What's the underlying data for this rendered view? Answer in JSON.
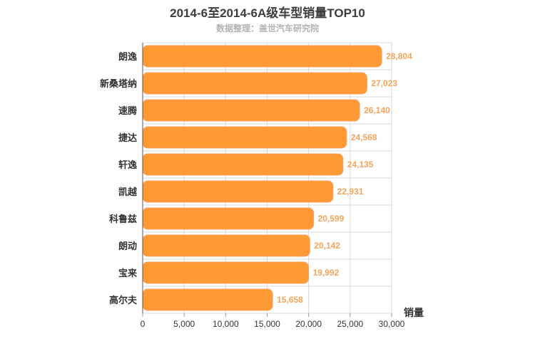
{
  "chart_data": {
    "type": "bar",
    "orientation": "horizontal",
    "title": "2014-6至2014-6A级车型销量TOP10",
    "subtitle": "数据整理：盖世汽车研究院",
    "categories": [
      "朗逸",
      "新桑塔纳",
      "速腾",
      "捷达",
      "轩逸",
      "凯越",
      "科鲁兹",
      "朗动",
      "宝来",
      "高尔夫"
    ],
    "values": [
      28804,
      27023,
      26140,
      24568,
      24135,
      22931,
      20599,
      20142,
      19992,
      15658
    ],
    "value_labels": [
      "28,804",
      "27,023",
      "26,140",
      "24,568",
      "24,135",
      "22,931",
      "20,599",
      "20,142",
      "19,992",
      "15,658"
    ],
    "xlabel": "销量",
    "ylabel": "",
    "xlim": [
      0,
      30000
    ],
    "ticks": [
      0,
      5000,
      10000,
      15000,
      20000,
      25000,
      30000
    ],
    "tick_labels": [
      "0",
      "5,000",
      "10,000",
      "15,000",
      "20,000",
      "25,000",
      "30,000"
    ],
    "grid": true,
    "legend": "none",
    "colors": {
      "bar": "#ff9933",
      "bar_stroke": "#f7a35c",
      "data_label": "#f7a35c",
      "grid": "#d8d8d8"
    }
  }
}
